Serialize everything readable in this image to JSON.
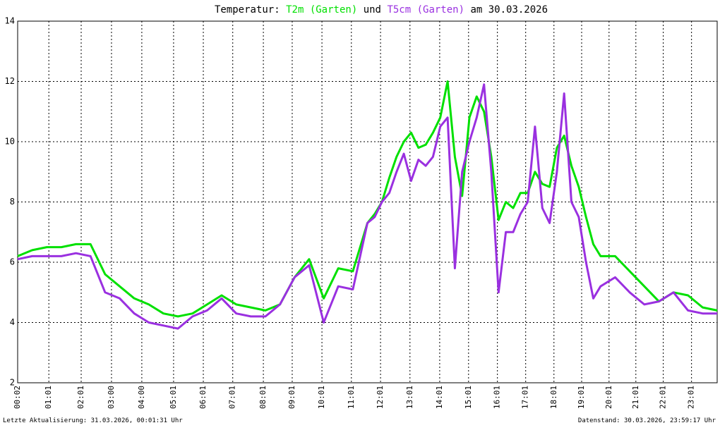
{
  "chart_data": {
    "type": "line",
    "title_prefix": "Temperatur:",
    "title_join": "und",
    "title_suffix": "am 30.03.2026",
    "footer_left": "Letzte Aktualisierung: 31.03.2026, 00:01:31 Uhr",
    "footer_right": "Datenstand: 30.03.2026, 23:59:17 Uhr",
    "grid": true,
    "xlim": [
      0,
      24
    ],
    "ylim": [
      2,
      14
    ],
    "yticks": [
      2,
      4,
      6,
      8,
      10,
      12,
      14
    ],
    "xticks": [
      {
        "value": 0,
        "label": "00:02"
      },
      {
        "value": 1.07,
        "label": "01:01"
      },
      {
        "value": 2.18,
        "label": "02:01"
      },
      {
        "value": 3.22,
        "label": "03:00"
      },
      {
        "value": 4.26,
        "label": "04:00"
      },
      {
        "value": 5.35,
        "label": "05:01"
      },
      {
        "value": 6.37,
        "label": "06:01"
      },
      {
        "value": 7.38,
        "label": "07:01"
      },
      {
        "value": 8.43,
        "label": "08:01"
      },
      {
        "value": 9.42,
        "label": "09:01"
      },
      {
        "value": 10.44,
        "label": "10:01"
      },
      {
        "value": 11.45,
        "label": "11:01"
      },
      {
        "value": 12.45,
        "label": "12:01"
      },
      {
        "value": 13.46,
        "label": "13:01"
      },
      {
        "value": 14.48,
        "label": "14:01"
      },
      {
        "value": 15.47,
        "label": "15:01"
      },
      {
        "value": 16.46,
        "label": "16:01"
      },
      {
        "value": 17.43,
        "label": "17:01"
      },
      {
        "value": 18.4,
        "label": "18:01"
      },
      {
        "value": 19.35,
        "label": "19:01"
      },
      {
        "value": 20.29,
        "label": "20:01"
      },
      {
        "value": 21.21,
        "label": "21:01"
      },
      {
        "value": 22.15,
        "label": "22:01"
      },
      {
        "value": 23.12,
        "label": "23:01"
      }
    ],
    "x": [
      0,
      0.5,
      1,
      1.5,
      2,
      2.5,
      3,
      3.5,
      4,
      4.5,
      5,
      5.5,
      6,
      6.5,
      7,
      7.5,
      8,
      8.5,
      9,
      9.5,
      10,
      10.5,
      11,
      11.5,
      12,
      12.25,
      12.5,
      12.75,
      13,
      13.25,
      13.5,
      13.75,
      14,
      14.25,
      14.5,
      14.75,
      15,
      15.25,
      15.5,
      15.75,
      16,
      16.25,
      16.5,
      16.75,
      17,
      17.25,
      17.5,
      17.75,
      18,
      18.25,
      18.5,
      18.75,
      19,
      19.25,
      19.5,
      19.75,
      20,
      20.5,
      21,
      21.5,
      22,
      22.5,
      23,
      23.5,
      24
    ],
    "series": [
      {
        "name": "T2m (Garten)",
        "color": "#00e000",
        "values": [
          6.2,
          6.4,
          6.5,
          6.5,
          6.6,
          6.6,
          5.6,
          5.2,
          4.8,
          4.6,
          4.3,
          4.2,
          4.3,
          4.6,
          4.9,
          4.6,
          4.5,
          4.4,
          4.6,
          5.5,
          6.1,
          4.8,
          5.8,
          5.7,
          7.3,
          7.6,
          8.0,
          8.8,
          9.5,
          10.0,
          10.3,
          9.8,
          9.9,
          10.3,
          10.8,
          12.0,
          9.5,
          8.2,
          10.8,
          11.5,
          11.0,
          9.5,
          7.4,
          8.0,
          7.8,
          8.3,
          8.3,
          9.0,
          8.6,
          8.5,
          9.8,
          10.2,
          9.2,
          8.5,
          7.5,
          6.6,
          6.2,
          6.2,
          5.7,
          5.2,
          4.7,
          5.0,
          4.9,
          4.5,
          4.4
        ]
      },
      {
        "name": "T5cm (Garten)",
        "color": "#9a30e0",
        "values": [
          6.1,
          6.2,
          6.2,
          6.2,
          6.3,
          6.2,
          5.0,
          4.8,
          4.3,
          4.0,
          3.9,
          3.8,
          4.2,
          4.4,
          4.8,
          4.3,
          4.2,
          4.2,
          4.6,
          5.5,
          5.9,
          4.0,
          5.2,
          5.1,
          7.3,
          7.5,
          8.0,
          8.3,
          9.0,
          9.6,
          8.7,
          9.4,
          9.2,
          9.5,
          10.5,
          10.8,
          5.8,
          9.0,
          10.0,
          10.8,
          11.9,
          9.0,
          5.0,
          7.0,
          7.0,
          7.6,
          8.0,
          10.5,
          7.8,
          7.3,
          9.0,
          11.6,
          8.0,
          7.5,
          6.0,
          4.8,
          5.2,
          5.5,
          5.0,
          4.6,
          4.7,
          5.0,
          4.4,
          4.3,
          4.3
        ]
      }
    ]
  }
}
